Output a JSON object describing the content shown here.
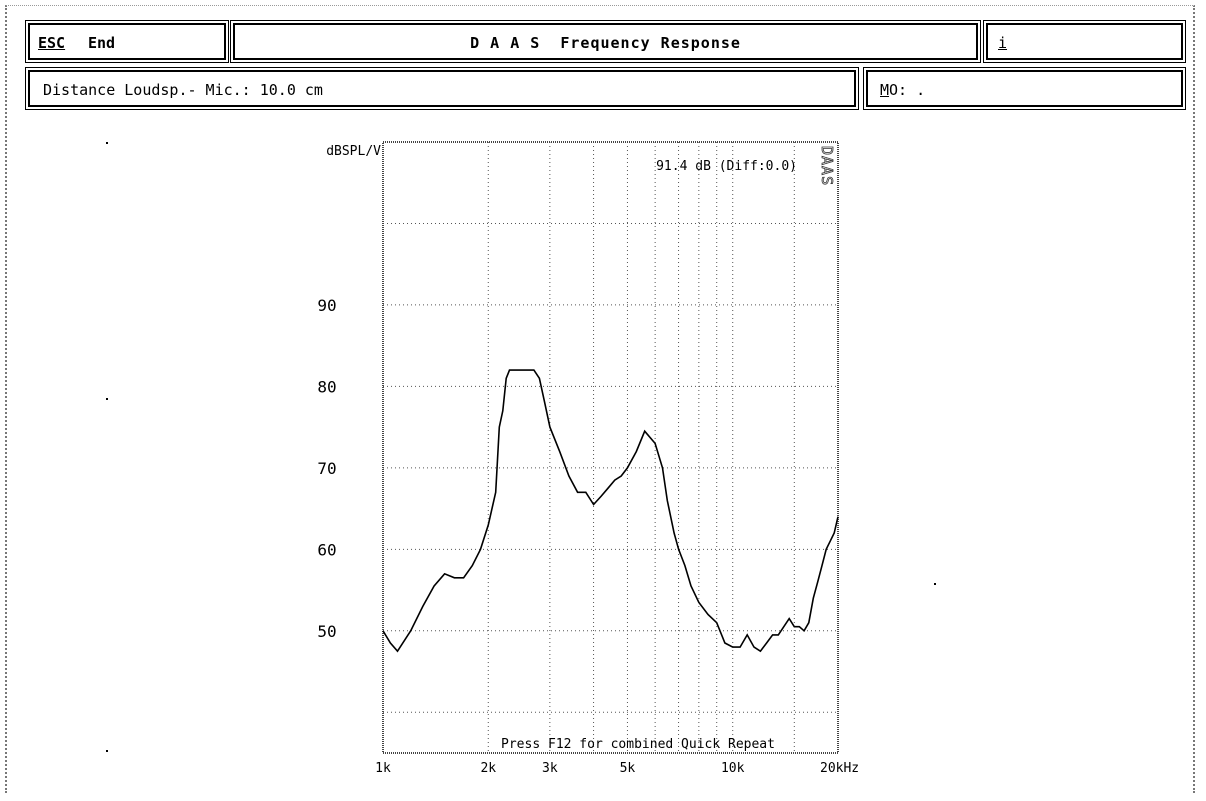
{
  "header": {
    "esc_key": "ESC",
    "esc_label": "End",
    "title": "D A A S  Frequency Response",
    "info_key": "i",
    "distance_label": "Distance Loudsp.- Mic.: 10.0 cm",
    "mo_key": "M",
    "mo_rest": "O: ."
  },
  "plot": {
    "y_unit_label": "dBSPL/V",
    "level_readout": "91.4 dB (Diff:0.0)",
    "side_label": "DAAS",
    "footer_message": "Press F12 for combined Quick Repeat",
    "y_tick_labels": [
      "90",
      "80",
      "70",
      "60",
      "50"
    ],
    "x_tick_labels": [
      "1k",
      "2k",
      "3k",
      "5k",
      "10k",
      "20kHz"
    ]
  },
  "chart_data": {
    "type": "line",
    "xlabel": "",
    "ylabel": "dBSPL/V",
    "x_scale": "log",
    "xlim": [
      1000,
      20000
    ],
    "ylim": [
      35,
      110
    ],
    "grid": true,
    "series": [
      {
        "x": [
          1000,
          1050,
          1100,
          1200,
          1300,
          1400,
          1500,
          1600,
          1700,
          1800,
          1900,
          2000,
          2050,
          2100,
          2150,
          2200,
          2250,
          2300,
          2400,
          2500,
          2600,
          2700,
          2800,
          2900,
          3000,
          3200,
          3400,
          3600,
          3800,
          4000,
          4200,
          4400,
          4600,
          4800,
          5000,
          5300,
          5600,
          6000,
          6300,
          6500,
          6800,
          7000,
          7300,
          7600,
          8000,
          8500,
          9000,
          9500,
          10000,
          10500,
          11000,
          11500,
          12000,
          12500,
          13000,
          13500,
          14000,
          14500,
          15000,
          15500,
          16000,
          16500,
          17000,
          17500,
          18000,
          18500,
          19000,
          19500,
          20000
        ],
        "y": [
          50,
          48.5,
          47.5,
          50,
          53,
          55.5,
          57,
          56.5,
          56.5,
          58,
          60,
          63,
          65,
          67,
          75,
          77,
          81,
          82,
          82,
          82,
          82,
          82,
          81,
          78,
          75,
          72,
          69,
          67,
          67,
          65.5,
          66.5,
          67.5,
          68.5,
          69,
          70,
          72,
          74.5,
          73,
          70,
          66,
          62,
          60,
          58,
          55.5,
          53.5,
          52,
          51,
          48.5,
          48,
          48,
          49.5,
          48,
          47.5,
          48.5,
          49.5,
          49.5,
          50.5,
          51.5,
          50.5,
          50.5,
          50,
          51,
          54,
          56,
          58,
          60,
          61,
          62,
          64
        ]
      }
    ]
  }
}
